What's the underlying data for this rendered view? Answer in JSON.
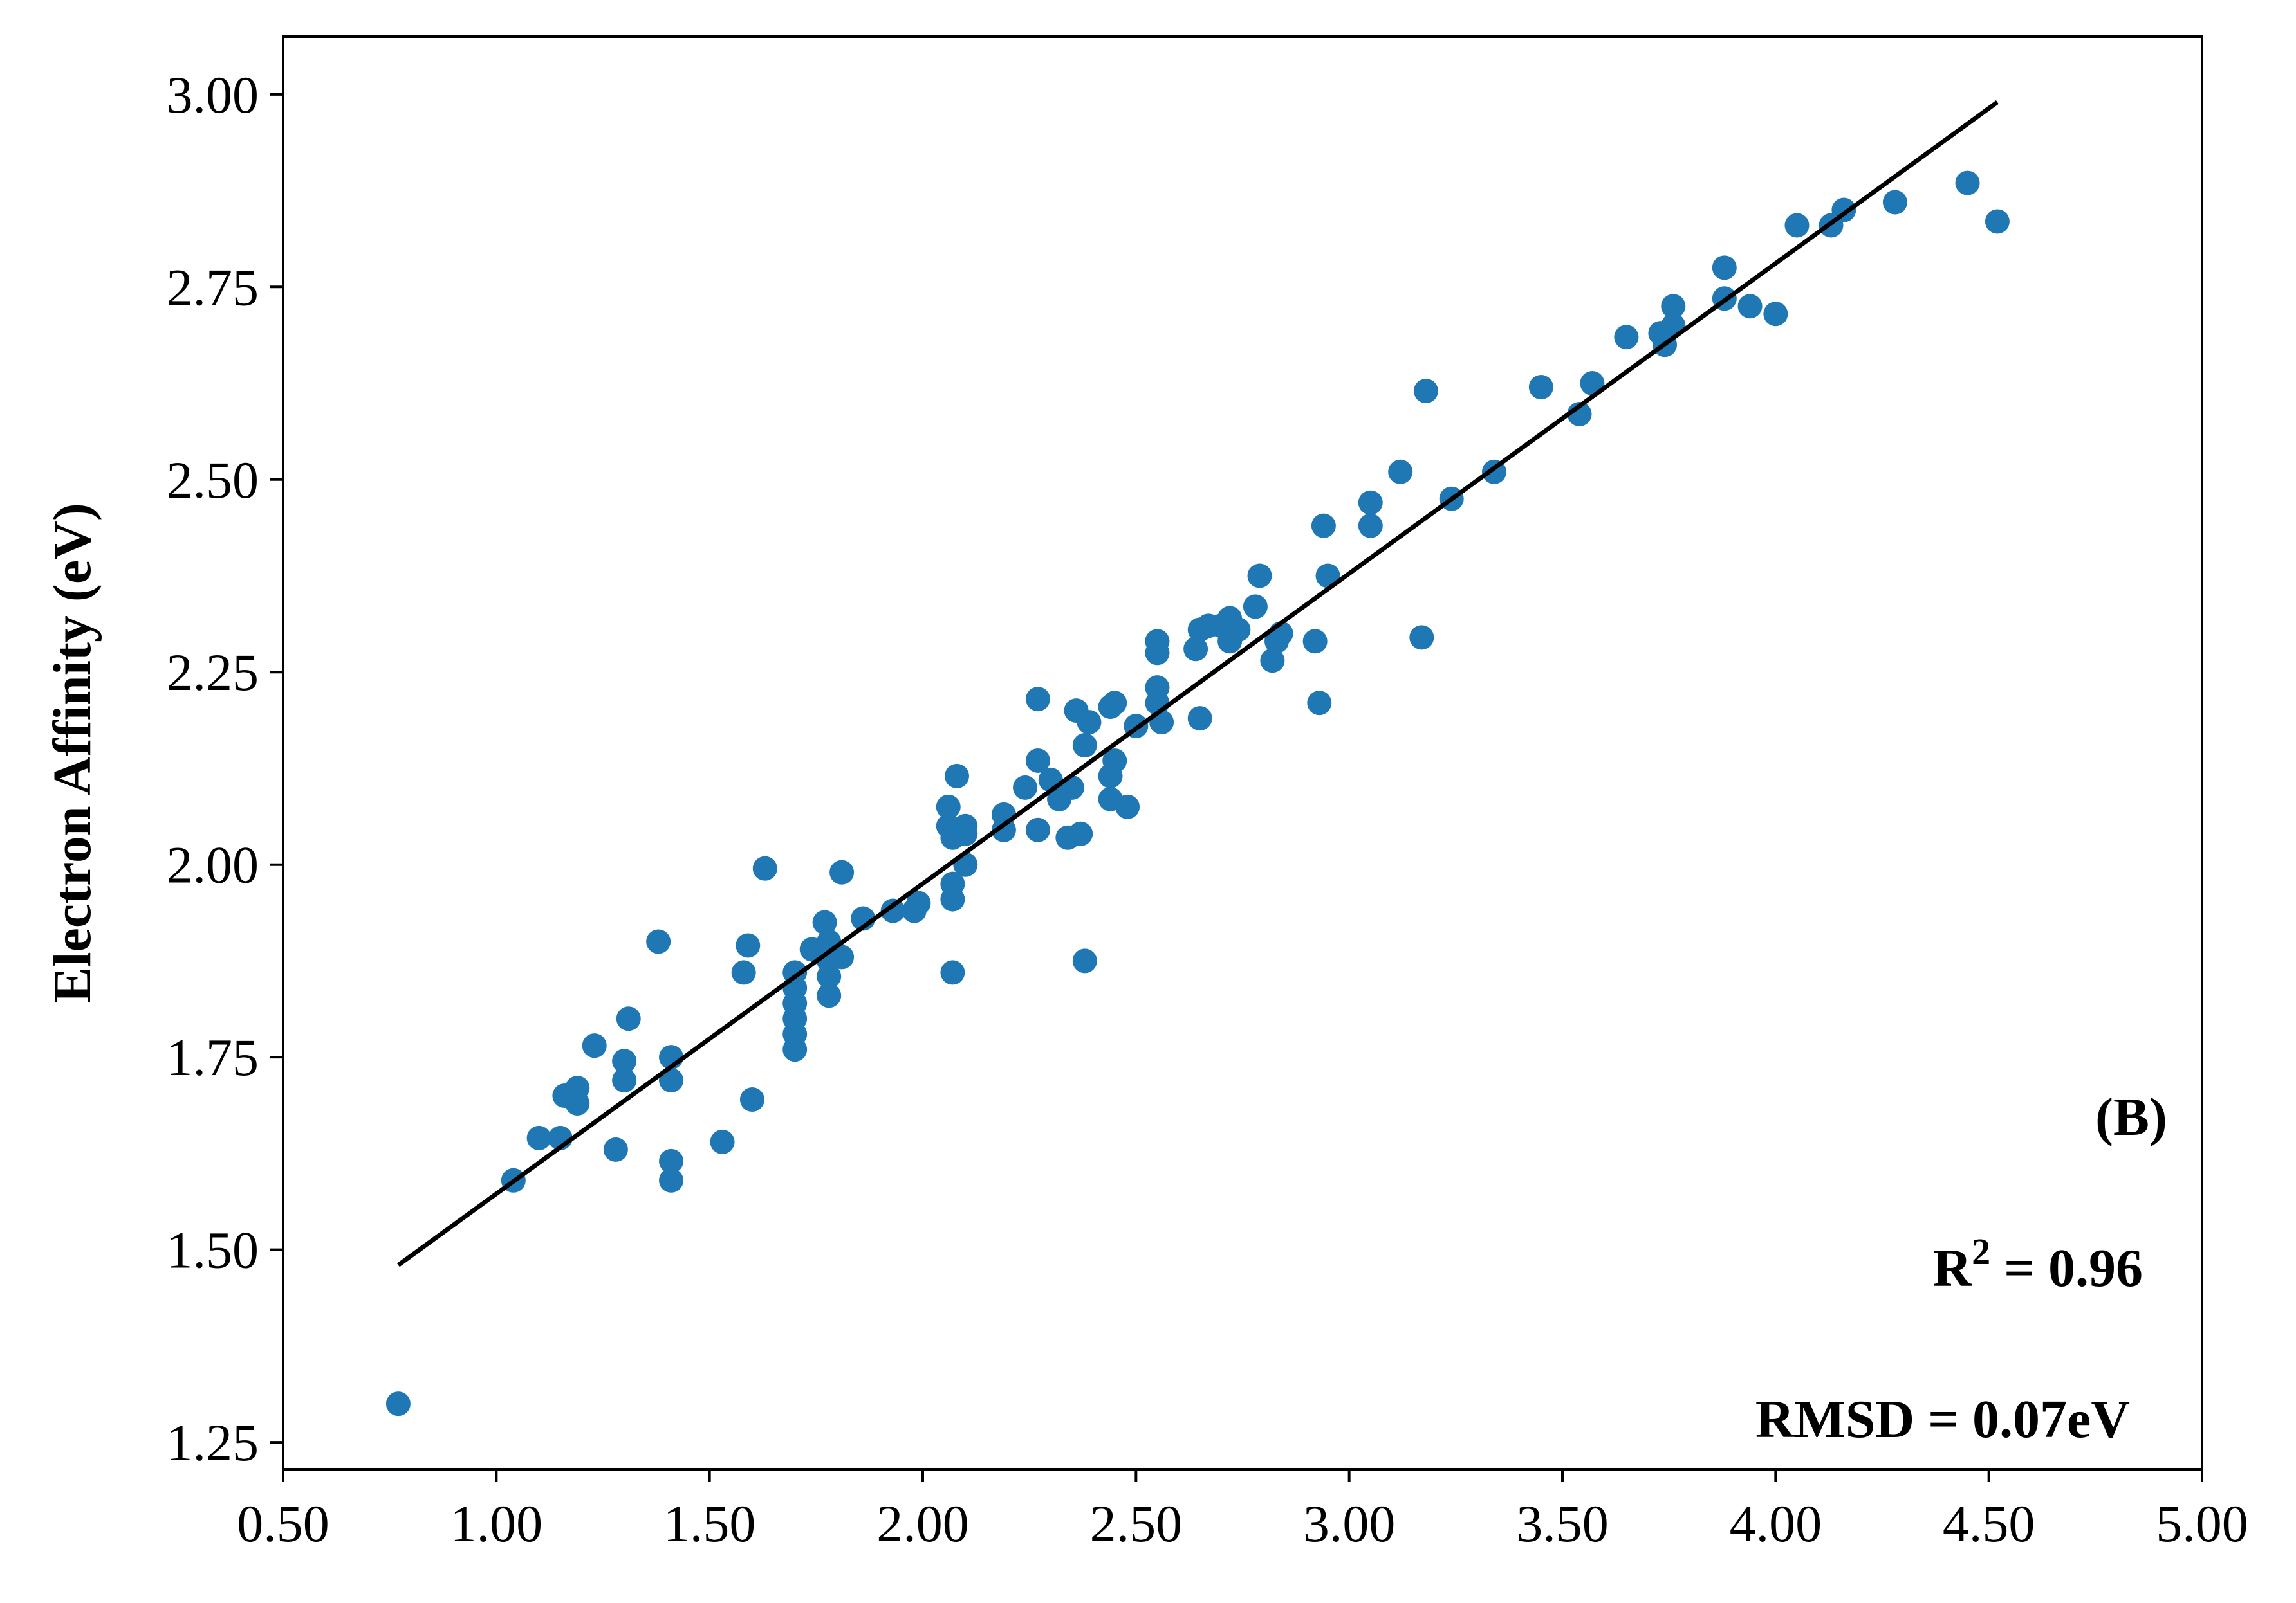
{
  "chart_data": {
    "type": "scatter",
    "ylabel": "Electron Affinity (eV)",
    "xlabel": "",
    "xlim": [
      0.5,
      5.0
    ],
    "ylim": [
      1.215,
      3.075
    ],
    "xticks": [
      "0.50",
      "1.00",
      "1.50",
      "2.00",
      "2.50",
      "3.00",
      "3.50",
      "4.00",
      "4.50",
      "5.00"
    ],
    "yticks": [
      "1.25",
      "1.50",
      "1.75",
      "2.00",
      "2.25",
      "2.50",
      "2.75",
      "3.00"
    ],
    "grid": false,
    "point_color": "#1f77b4",
    "line_color": "#000000",
    "fit_line": {
      "x": [
        0.77,
        4.52
      ],
      "y": [
        1.48,
        2.99
      ]
    },
    "annotations": {
      "panel": "(B)",
      "r2_prefix": "R",
      "r2_exp": "2",
      "r2_value": " = 0.96",
      "rmsd": "RMSD = 0.07eV"
    },
    "points": [
      [
        0.77,
        1.3
      ],
      [
        1.04,
        1.59
      ],
      [
        1.1,
        1.645
      ],
      [
        1.15,
        1.645
      ],
      [
        1.16,
        1.7
      ],
      [
        1.19,
        1.71
      ],
      [
        1.19,
        1.69
      ],
      [
        1.23,
        1.765
      ],
      [
        1.28,
        1.63
      ],
      [
        1.3,
        1.745
      ],
      [
        1.3,
        1.72
      ],
      [
        1.31,
        1.8
      ],
      [
        1.38,
        1.9
      ],
      [
        1.41,
        1.75
      ],
      [
        1.41,
        1.72
      ],
      [
        1.41,
        1.615
      ],
      [
        1.41,
        1.59
      ],
      [
        1.53,
        1.64
      ],
      [
        1.58,
        1.86
      ],
      [
        1.59,
        1.895
      ],
      [
        1.6,
        1.695
      ],
      [
        1.63,
        1.995
      ],
      [
        1.7,
        1.86
      ],
      [
        1.7,
        1.84
      ],
      [
        1.7,
        1.82
      ],
      [
        1.7,
        1.8
      ],
      [
        1.7,
        1.78
      ],
      [
        1.7,
        1.76
      ],
      [
        1.74,
        1.89
      ],
      [
        1.77,
        1.925
      ],
      [
        1.78,
        1.9
      ],
      [
        1.78,
        1.875
      ],
      [
        1.78,
        1.855
      ],
      [
        1.78,
        1.83
      ],
      [
        1.81,
        1.99
      ],
      [
        1.81,
        1.88
      ],
      [
        1.86,
        1.93
      ],
      [
        1.93,
        1.94
      ],
      [
        1.98,
        1.94
      ],
      [
        1.99,
        1.95
      ],
      [
        2.06,
        2.075
      ],
      [
        2.06,
        2.05
      ],
      [
        2.07,
        2.035
      ],
      [
        2.07,
        1.975
      ],
      [
        2.07,
        1.955
      ],
      [
        2.07,
        1.86
      ],
      [
        2.08,
        2.115
      ],
      [
        2.1,
        2.05
      ],
      [
        2.1,
        2.04
      ],
      [
        2.1,
        2.0
      ],
      [
        2.19,
        2.065
      ],
      [
        2.19,
        2.045
      ],
      [
        2.24,
        2.1
      ],
      [
        2.27,
        2.215
      ],
      [
        2.27,
        2.135
      ],
      [
        2.27,
        2.045
      ],
      [
        2.3,
        2.11
      ],
      [
        2.32,
        2.085
      ],
      [
        2.34,
        2.035
      ],
      [
        2.35,
        2.1
      ],
      [
        2.36,
        2.2
      ],
      [
        2.37,
        2.04
      ],
      [
        2.38,
        2.155
      ],
      [
        2.38,
        1.875
      ],
      [
        2.39,
        2.185
      ],
      [
        2.44,
        2.205
      ],
      [
        2.44,
        2.115
      ],
      [
        2.44,
        2.085
      ],
      [
        2.45,
        2.21
      ],
      [
        2.45,
        2.135
      ],
      [
        2.48,
        2.075
      ],
      [
        2.5,
        2.18
      ],
      [
        2.55,
        2.29
      ],
      [
        2.55,
        2.275
      ],
      [
        2.55,
        2.23
      ],
      [
        2.55,
        2.21
      ],
      [
        2.56,
        2.185
      ],
      [
        2.64,
        2.28
      ],
      [
        2.65,
        2.305
      ],
      [
        2.65,
        2.19
      ],
      [
        2.67,
        2.31
      ],
      [
        2.7,
        2.31
      ],
      [
        2.72,
        2.32
      ],
      [
        2.72,
        2.29
      ],
      [
        2.74,
        2.305
      ],
      [
        2.78,
        2.335
      ],
      [
        2.79,
        2.375
      ],
      [
        2.82,
        2.265
      ],
      [
        2.83,
        2.29
      ],
      [
        2.84,
        2.3
      ],
      [
        2.92,
        2.29
      ],
      [
        2.93,
        2.21
      ],
      [
        2.94,
        2.44
      ],
      [
        2.95,
        2.375
      ],
      [
        3.05,
        2.47
      ],
      [
        3.05,
        2.44
      ],
      [
        3.12,
        2.51
      ],
      [
        3.17,
        2.295
      ],
      [
        3.18,
        2.615
      ],
      [
        3.24,
        2.475
      ],
      [
        3.34,
        2.51
      ],
      [
        3.45,
        2.62
      ],
      [
        3.54,
        2.585
      ],
      [
        3.57,
        2.625
      ],
      [
        3.65,
        2.685
      ],
      [
        3.73,
        2.69
      ],
      [
        3.74,
        2.675
      ],
      [
        3.76,
        2.725
      ],
      [
        3.76,
        2.7
      ],
      [
        3.88,
        2.775
      ],
      [
        3.88,
        2.735
      ],
      [
        3.94,
        2.725
      ],
      [
        4.0,
        2.715
      ],
      [
        4.05,
        2.83
      ],
      [
        4.13,
        2.83
      ],
      [
        4.16,
        2.85
      ],
      [
        4.28,
        2.86
      ],
      [
        4.45,
        2.885
      ],
      [
        4.52,
        2.835
      ]
    ]
  }
}
